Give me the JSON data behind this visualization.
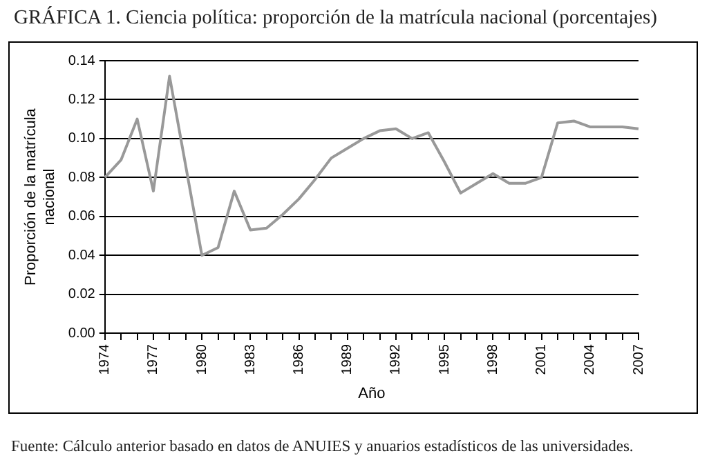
{
  "chart_data": {
    "type": "line",
    "title": "GRÁFICA 1. Ciencia política: proporción de la matrícula nacional (porcentajes)",
    "xlabel": "Año",
    "ylabel": "Proporción de la matrícula nacional",
    "categories": [
      "1974",
      null,
      null,
      "1977",
      null,
      null,
      "1980",
      null,
      null,
      "1983",
      null,
      null,
      "1986",
      null,
      null,
      "1989",
      null,
      null,
      "1992",
      null,
      null,
      "1995",
      null,
      null,
      "1998",
      null,
      null,
      "2001",
      null,
      null,
      "2004",
      null,
      null,
      "2007"
    ],
    "series": [
      {
        "color": "#999999",
        "values": [
          0.08,
          0.089,
          0.11,
          0.073,
          0.132,
          0.086,
          0.04,
          0.044,
          0.073,
          0.053,
          0.054,
          0.061,
          0.069,
          0.079,
          0.09,
          0.095,
          0.1,
          0.104,
          0.105,
          0.1,
          0.103,
          0.088,
          0.072,
          0.077,
          0.082,
          0.077,
          0.077,
          0.08,
          0.108,
          0.109,
          0.106,
          0.106,
          0.106,
          0.105
        ]
      }
    ],
    "ylim": [
      0,
      0.14
    ],
    "yticks": [
      {
        "value": 0,
        "label": "0.00"
      },
      {
        "value": 0.02,
        "label": "0.02"
      },
      {
        "value": 0.04,
        "label": "0.04"
      },
      {
        "value": 0.06,
        "label": "0.06"
      },
      {
        "value": 0.08,
        "label": "0.08"
      },
      {
        "value": 0.1,
        "label": "0.10"
      },
      {
        "value": 0.12,
        "label": "0.12"
      },
      {
        "value": 0.14,
        "label": "0.14"
      }
    ],
    "grid": "y",
    "legend": false,
    "marker": "none",
    "line_style": "solid",
    "annotations": [
      "Fuente: Cálculo anterior basado en datos de ANUIES y anuarios estadísticos de las universidades."
    ]
  }
}
